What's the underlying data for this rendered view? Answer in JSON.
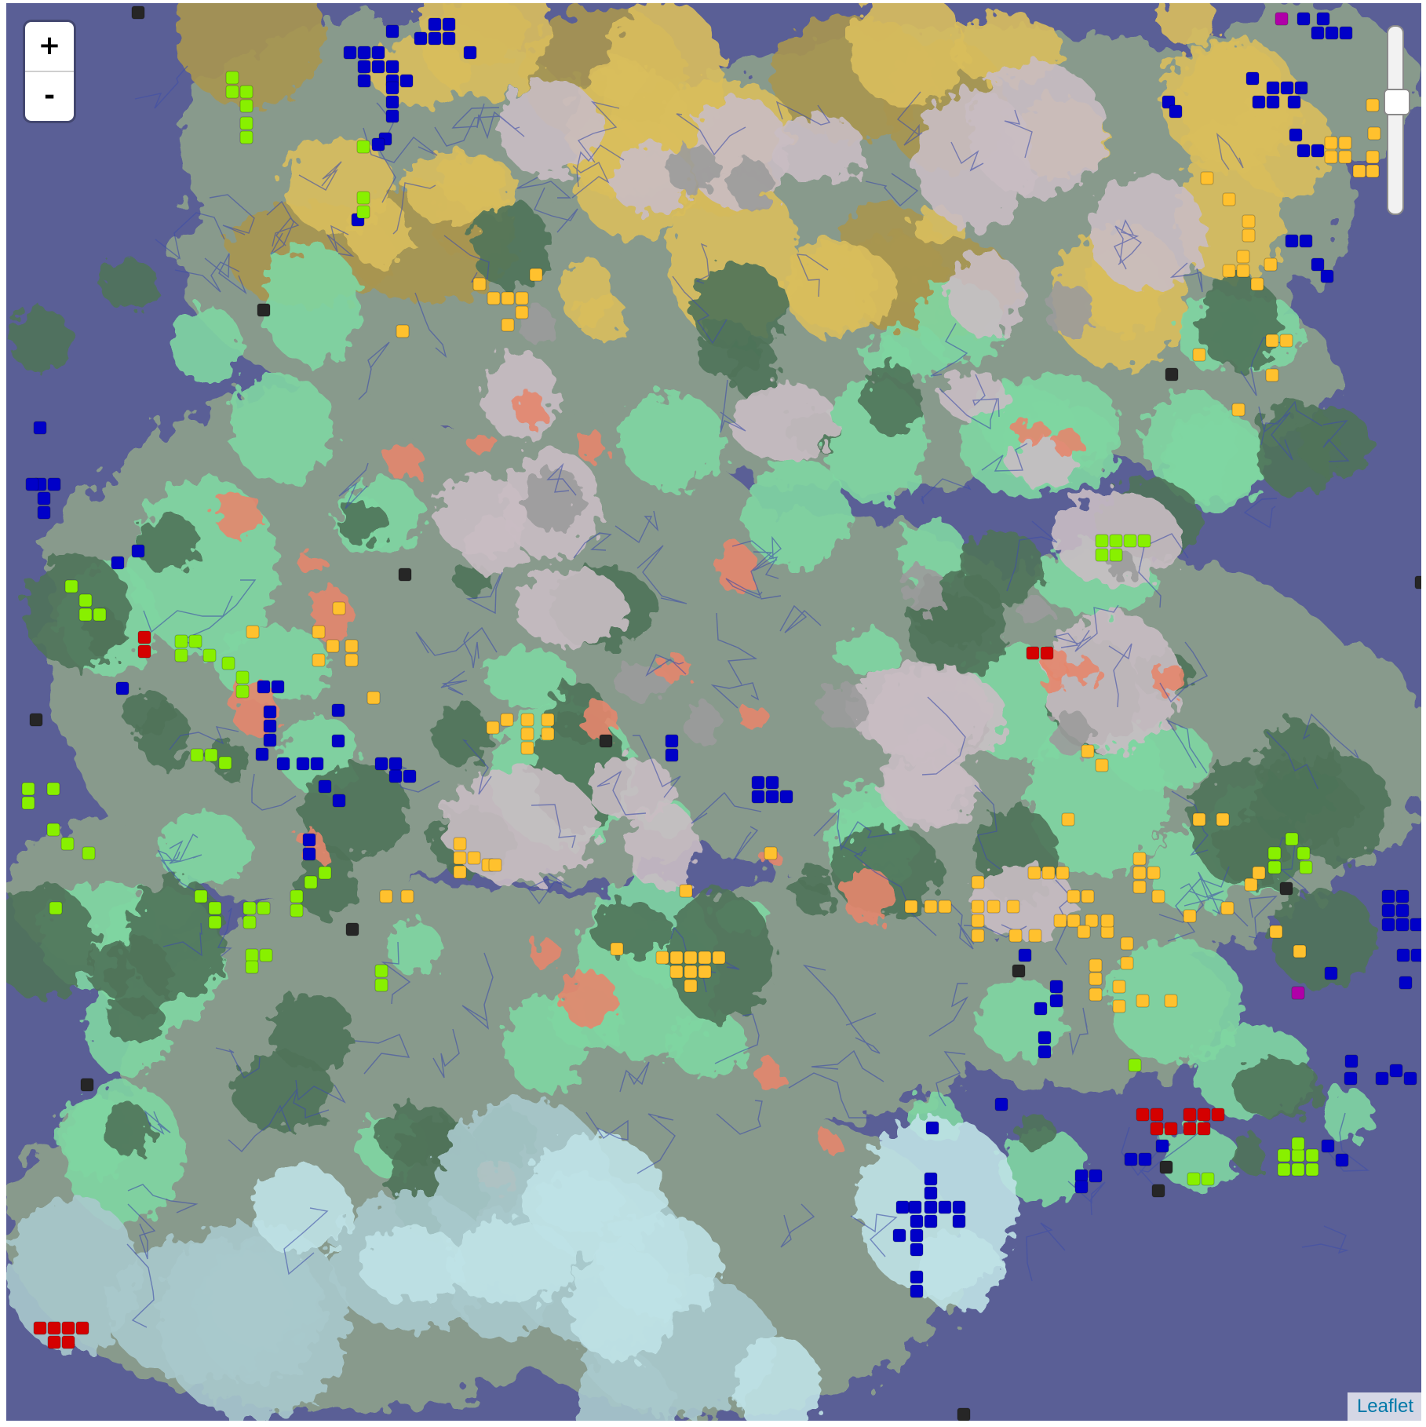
{
  "map": {
    "colors": {
      "ocean": "#5a5f96",
      "deep_ocean": "#52568c",
      "land": "#889a8c",
      "grassland": "#7fd6a2",
      "forest": "#4f7359",
      "mountain": "#c9bcc3",
      "rock": "#9b9b9b",
      "desert": "#d9be5c",
      "steppe": "#a99650",
      "tundra": "#a8c9cc",
      "ice": "#bfe2e6",
      "savanna": "#e4866d",
      "river": "#3f4ea8"
    },
    "markers": {
      "legend": [
        {
          "name": "blue",
          "color": "#0000c8"
        },
        {
          "name": "yellow-green",
          "color": "#88f000"
        },
        {
          "name": "orange",
          "color": "#ffc12e"
        },
        {
          "name": "red",
          "color": "#d40000"
        },
        {
          "name": "black",
          "color": "#262626"
        },
        {
          "name": "magenta",
          "color": "#b000a8"
        }
      ]
    }
  },
  "zoom": {
    "in_label": "+",
    "out_label": "-",
    "slider_level": 0.38
  },
  "attribution": {
    "text": "Leaflet"
  }
}
